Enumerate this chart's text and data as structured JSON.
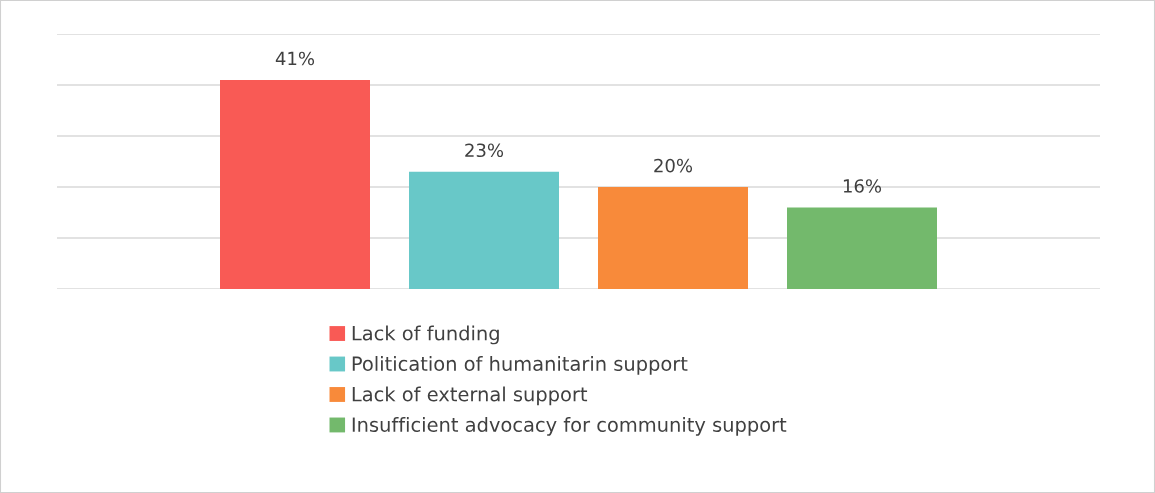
{
  "chart_data": {
    "type": "bar",
    "categories": [
      null
    ],
    "series": [
      {
        "name": "Lack of funding",
        "color": "#f95a55",
        "values": [
          41
        ],
        "value_labels": [
          "41%"
        ]
      },
      {
        "name": "Politication of humanitarin support",
        "color": "#68c8c8",
        "values": [
          23
        ],
        "value_labels": [
          "23%"
        ]
      },
      {
        "name": "Lack of external support",
        "color": "#f88a3a",
        "values": [
          20
        ],
        "value_labels": [
          "20%"
        ]
      },
      {
        "name": "Insufficient advocacy for community support",
        "color": "#73b96c",
        "values": [
          16
        ],
        "value_labels": [
          "16%"
        ]
      }
    ],
    "ylim": [
      0,
      50
    ],
    "yticks": [
      {
        "value": 0,
        "label": null
      },
      {
        "value": 10,
        "label": null
      },
      {
        "value": 20,
        "label": null
      },
      {
        "value": 30,
        "label": null
      },
      {
        "value": 40,
        "label": null
      },
      {
        "value": 50,
        "label": null
      }
    ],
    "grid": "y",
    "legend": "bottom"
  }
}
